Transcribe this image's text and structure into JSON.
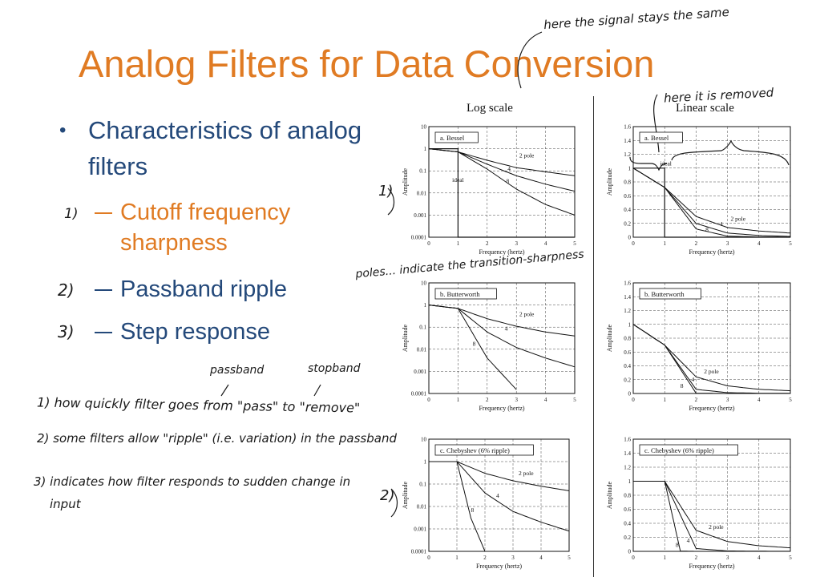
{
  "slide": {
    "title": "Analog Filters for Data Conversion",
    "bullet": "Characteristics of analog filters",
    "sub_items": [
      "Cutoff frequency",
      "sharpness",
      "Passband ripple",
      "Step response"
    ]
  },
  "annotations": {
    "top_note": "here the signal stays the same",
    "removed_note": "here it is removed",
    "poles_note": "poles... indicate the transition-sharpness",
    "passband_label": "passband",
    "stopband_label": "stopband",
    "marker_1": "1)",
    "marker_2": "2)",
    "marker_3": "3)",
    "note_1": "1) how quickly filter goes from \"pass\" to \"remove\"",
    "note_2": "2) some filters allow \"ripple\" (i.e. variation) in the passband",
    "note_3a": "3) indicates how filter responds to sudden change in",
    "note_3b": "input",
    "graph_marker_1": "1)",
    "graph_marker_2": "2)"
  },
  "figure": {
    "log_header": "Log scale",
    "linear_header": "Linear scale",
    "ylabel": "Amplitude",
    "xlabel": "Frequency (hertz)",
    "log_ticks": [
      "10",
      "1",
      "0.1",
      "0.01",
      "0.001",
      "0.0001"
    ],
    "lin_ticks": [
      "1.6",
      "1.4",
      "1.2",
      "1",
      "0.8",
      "0.6",
      "0.4",
      "0.2",
      "0"
    ],
    "x_ticks": [
      "0",
      "1",
      "2",
      "3",
      "4",
      "5"
    ]
  },
  "chart_data": [
    {
      "type": "line",
      "title": "a. Bessel",
      "scale": "log",
      "xlabel": "Frequency (hertz)",
      "ylabel": "Amplitude",
      "xlim": [
        0,
        5
      ],
      "ylim": [
        0.0001,
        10
      ],
      "series": [
        {
          "name": "2 pole",
          "x": [
            0,
            1,
            2,
            3,
            4,
            5
          ],
          "values": [
            1,
            0.72,
            0.3,
            0.14,
            0.09,
            0.06
          ]
        },
        {
          "name": "4",
          "x": [
            0,
            1,
            2,
            3,
            4,
            5
          ],
          "values": [
            1,
            0.72,
            0.2,
            0.06,
            0.025,
            0.012
          ]
        },
        {
          "name": "8",
          "x": [
            0,
            1,
            2,
            3,
            4,
            5
          ],
          "values": [
            1,
            0.72,
            0.12,
            0.015,
            0.003,
            0.001
          ]
        },
        {
          "name": "ideal",
          "x": [
            0,
            1,
            1,
            5
          ],
          "values": [
            1,
            1,
            0.0001,
            0.0001
          ]
        }
      ]
    },
    {
      "type": "line",
      "title": "a. Bessel",
      "scale": "linear",
      "xlabel": "Frequency (hertz)",
      "ylabel": "Amplitude",
      "xlim": [
        0,
        5
      ],
      "ylim": [
        0,
        1.6
      ],
      "series": [
        {
          "name": "2 pole",
          "x": [
            0,
            1,
            2,
            3,
            4,
            5
          ],
          "values": [
            1,
            0.72,
            0.3,
            0.14,
            0.09,
            0.06
          ]
        },
        {
          "name": "4",
          "x": [
            0,
            1,
            2,
            3,
            4,
            5
          ],
          "values": [
            1,
            0.72,
            0.2,
            0.06,
            0.025,
            0.012
          ]
        },
        {
          "name": "8",
          "x": [
            0,
            1,
            2,
            3,
            4,
            5
          ],
          "values": [
            1,
            0.72,
            0.12,
            0.015,
            0.003,
            0.001
          ]
        },
        {
          "name": "ideal",
          "x": [
            0,
            1,
            1,
            5
          ],
          "values": [
            1,
            1,
            0,
            0
          ]
        }
      ]
    },
    {
      "type": "line",
      "title": "b. Butterworth",
      "scale": "log",
      "xlabel": "Frequency (hertz)",
      "ylabel": "Amplitude",
      "xlim": [
        0,
        5
      ],
      "ylim": [
        0.0001,
        10
      ],
      "series": [
        {
          "name": "2 pole",
          "x": [
            0,
            1,
            2,
            3,
            4,
            5
          ],
          "values": [
            1,
            0.7,
            0.24,
            0.11,
            0.06,
            0.04
          ]
        },
        {
          "name": "4",
          "x": [
            0,
            1,
            2,
            3,
            4,
            5
          ],
          "values": [
            1,
            0.7,
            0.06,
            0.012,
            0.004,
            0.0016
          ]
        },
        {
          "name": "8",
          "x": [
            0,
            1,
            2,
            3
          ],
          "values": [
            1,
            0.7,
            0.004,
            0.00015
          ]
        }
      ]
    },
    {
      "type": "line",
      "title": "b. Butterworth",
      "scale": "linear",
      "xlabel": "Frequency (hertz)",
      "ylabel": "Amplitude",
      "xlim": [
        0,
        5
      ],
      "ylim": [
        0,
        1.6
      ],
      "series": [
        {
          "name": "2 pole",
          "x": [
            0,
            1,
            2,
            3,
            4,
            5
          ],
          "values": [
            1,
            0.7,
            0.24,
            0.11,
            0.06,
            0.04
          ]
        },
        {
          "name": "4",
          "x": [
            0,
            1,
            2,
            3,
            4,
            5
          ],
          "values": [
            1,
            0.7,
            0.06,
            0.012,
            0.004,
            0.0016
          ]
        },
        {
          "name": "8",
          "x": [
            0,
            1,
            2,
            3
          ],
          "values": [
            1,
            0.7,
            0.004,
            0.00015
          ]
        }
      ]
    },
    {
      "type": "line",
      "title": "c. Chebyshev (6% ripple)",
      "scale": "log",
      "xlabel": "Frequency (hertz)",
      "ylabel": "Amplitude",
      "xlim": [
        0,
        5
      ],
      "ylim": [
        0.0001,
        10
      ],
      "series": [
        {
          "name": "2 pole",
          "x": [
            0,
            1,
            2,
            3,
            4,
            5
          ],
          "values": [
            1,
            1,
            0.3,
            0.14,
            0.08,
            0.05
          ]
        },
        {
          "name": "4",
          "x": [
            0,
            1,
            2,
            3,
            4,
            5
          ],
          "values": [
            1,
            1,
            0.04,
            0.006,
            0.002,
            0.0008
          ]
        },
        {
          "name": "8",
          "x": [
            0,
            1,
            1.5,
            2
          ],
          "values": [
            1,
            1,
            0.003,
            0.0001
          ]
        }
      ]
    },
    {
      "type": "line",
      "title": "c. Chebyshev (6% ripple)",
      "scale": "linear",
      "xlabel": "Frequency (hertz)",
      "ylabel": "Amplitude",
      "xlim": [
        0,
        5
      ],
      "ylim": [
        0,
        1.6
      ],
      "series": [
        {
          "name": "2 pole",
          "x": [
            0,
            1,
            2,
            3,
            4,
            5
          ],
          "values": [
            1,
            1,
            0.3,
            0.14,
            0.08,
            0.05
          ]
        },
        {
          "name": "4",
          "x": [
            0,
            1,
            2,
            3,
            4,
            5
          ],
          "values": [
            1,
            1,
            0.04,
            0.006,
            0.002,
            0.0008
          ]
        },
        {
          "name": "8",
          "x": [
            0,
            1,
            1.5,
            2
          ],
          "values": [
            1,
            1,
            0.003,
            0.0001
          ]
        }
      ]
    }
  ]
}
